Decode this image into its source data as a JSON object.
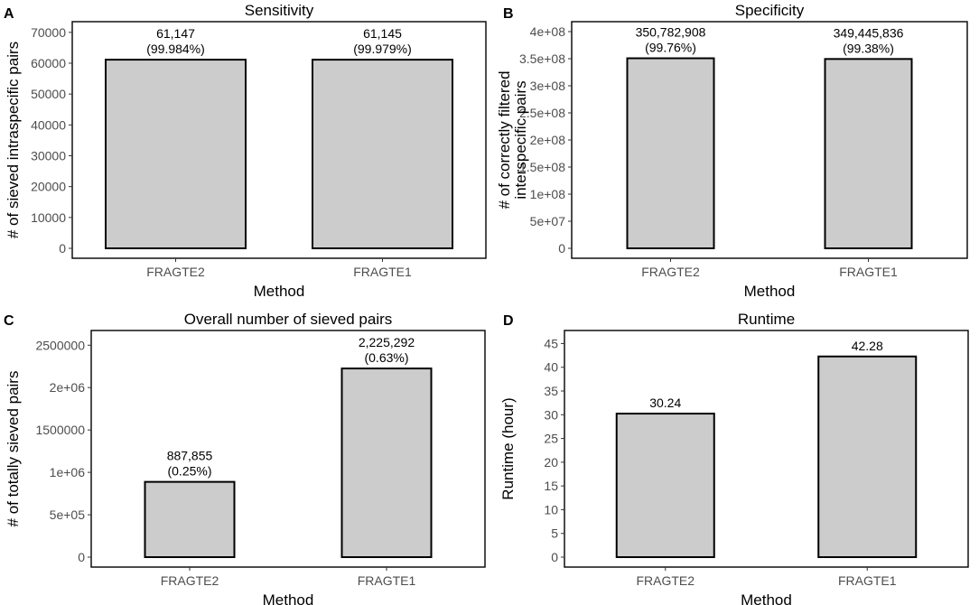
{
  "colors": {
    "bar_fill": "#cccccc",
    "bar_stroke": "#000000",
    "tick_text": "#4d4d4d"
  },
  "chart_data": [
    {
      "panel": "A",
      "type": "bar",
      "title": "Sensitivity",
      "xlabel": "Method",
      "ylabel": "# of sieved intraspecific pairs",
      "categories": [
        "FRAGTE2",
        "FRAGTE1"
      ],
      "values": [
        61147,
        61145
      ],
      "bar_labels": [
        [
          "61,147",
          "(99.984%)"
        ],
        [
          "61,145",
          "(99.979%)"
        ]
      ],
      "ylim": [
        0,
        72000
      ],
      "yticks": [
        0,
        10000,
        20000,
        30000,
        40000,
        50000,
        60000,
        70000
      ],
      "ytick_labels": [
        "0",
        "10000",
        "20000",
        "30000",
        "40000",
        "50000",
        "60000",
        "70000"
      ]
    },
    {
      "panel": "B",
      "type": "bar",
      "title": "Specificity",
      "xlabel": "Method",
      "ylabel": [
        "# of correctly filtered",
        "interspecific pairs"
      ],
      "categories": [
        "FRAGTE2",
        "FRAGTE1"
      ],
      "values": [
        350782908,
        349445836
      ],
      "bar_labels": [
        [
          "350,782,908",
          "(99.76%)"
        ],
        [
          "349,445,836",
          "(99.38%)"
        ]
      ],
      "ylim": [
        0,
        410000000
      ],
      "yticks": [
        0,
        50000000,
        100000000,
        150000000,
        200000000,
        250000000,
        300000000,
        350000000,
        400000000
      ],
      "ytick_labels": [
        "0",
        "5e+07",
        "1e+08",
        "1.5e+08",
        "2e+08",
        "2.5e+08",
        "3e+08",
        "3.5e+08",
        "4e+08"
      ]
    },
    {
      "panel": "C",
      "type": "bar",
      "title": "Overall number of sieved pairs",
      "xlabel": "Method",
      "ylabel": "# of totally sieved pairs",
      "categories": [
        "FRAGTE2",
        "FRAGTE1"
      ],
      "values": [
        887855,
        2225292
      ],
      "bar_labels": [
        [
          "887,855",
          "(0.25%)"
        ],
        [
          "2,225,292",
          "(0.63%)"
        ]
      ],
      "ylim": [
        0,
        2620000
      ],
      "yticks": [
        0,
        500000,
        1000000,
        1500000,
        2000000,
        2500000
      ],
      "ytick_labels": [
        "0",
        "5e+05",
        "1e+06",
        "1500000",
        "2e+06",
        "2500000"
      ]
    },
    {
      "panel": "D",
      "type": "bar",
      "title": "Runtime",
      "xlabel": "Method",
      "ylabel": "Runtime (hour)",
      "categories": [
        "FRAGTE2",
        "FRAGTE1"
      ],
      "values": [
        30.24,
        42.28
      ],
      "bar_labels": [
        [
          "30.24"
        ],
        [
          "42.28"
        ]
      ],
      "ylim": [
        0,
        46.8
      ],
      "yticks": [
        0,
        5,
        10,
        15,
        20,
        25,
        30,
        35,
        40,
        45
      ],
      "ytick_labels": [
        "0",
        "5",
        "10",
        "15",
        "20",
        "25",
        "30",
        "35",
        "40",
        "45"
      ]
    }
  ]
}
